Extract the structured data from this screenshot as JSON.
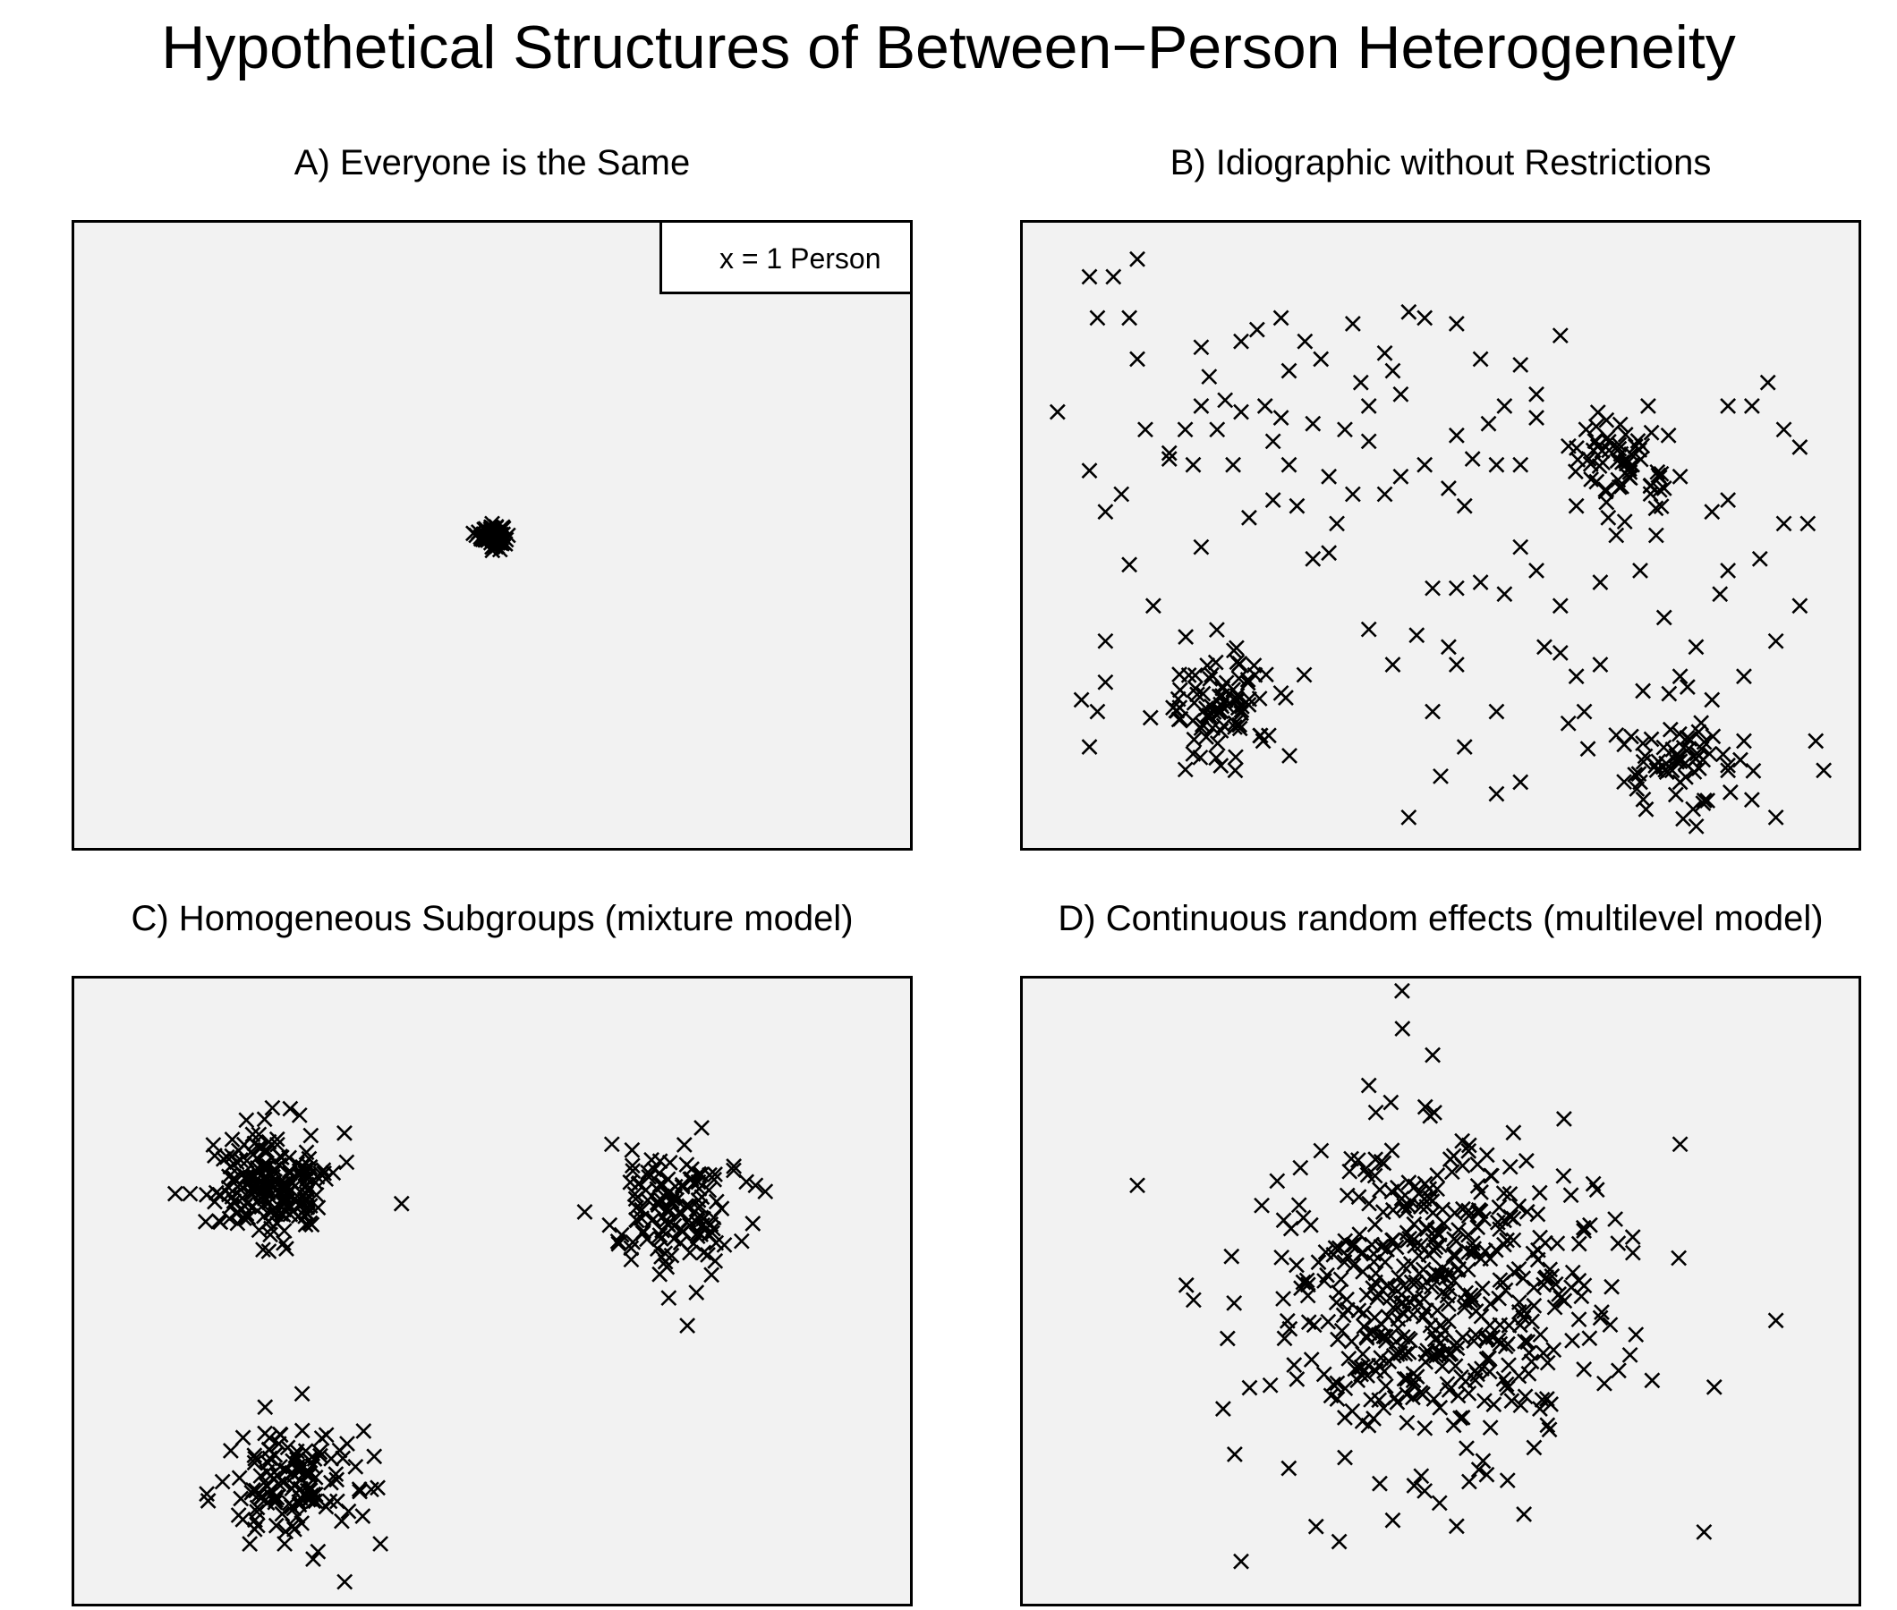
{
  "title": "Hypothetical Structures of Between−Person Heterogeneity",
  "chart_data": [
    {
      "type": "scatter",
      "title": "A) Everyone is the Same",
      "xlabel": "",
      "ylabel": "",
      "xlim": [
        0,
        1
      ],
      "ylim": [
        0,
        1
      ],
      "axes": false,
      "grid": false,
      "legend": {
        "text": "x = 1 Person",
        "placement": "top-right"
      },
      "marker": "x",
      "clusters": [
        {
          "cx": 0.5,
          "cy": 0.5,
          "sd": 0.009,
          "n": 100
        }
      ],
      "series": [
        {
          "points": [
            [
              0.5,
              0.5
            ],
            [
              0.49,
              0.51
            ],
            [
              0.51,
              0.49
            ],
            [
              0.5,
              0.52
            ],
            [
              0.5,
              0.48
            ],
            [
              0.48,
              0.5
            ],
            [
              0.52,
              0.5
            ]
          ]
        }
      ]
    },
    {
      "type": "scatter",
      "title": "B) Idiographic without Restrictions",
      "xlabel": "",
      "ylabel": "",
      "xlim": [
        0,
        1
      ],
      "ylim": [
        0,
        1
      ],
      "axes": false,
      "grid": false,
      "marker": "x",
      "series": [
        {
          "points": [
            [
              0.06,
              0.94
            ],
            [
              0.09,
              0.94
            ],
            [
              0.12,
              0.97
            ],
            [
              0.07,
              0.87
            ],
            [
              0.11,
              0.87
            ],
            [
              0.12,
              0.8
            ],
            [
              0.02,
              0.71
            ],
            [
              0.06,
              0.61
            ],
            [
              0.1,
              0.57
            ],
            [
              0.08,
              0.54
            ],
            [
              0.11,
              0.45
            ],
            [
              0.06,
              0.14
            ],
            [
              0.07,
              0.2
            ],
            [
              0.08,
              0.25
            ],
            [
              0.2,
              0.82
            ],
            [
              0.21,
              0.77
            ],
            [
              0.23,
              0.73
            ],
            [
              0.25,
              0.71
            ],
            [
              0.28,
              0.72
            ],
            [
              0.3,
              0.7
            ],
            [
              0.25,
              0.83
            ],
            [
              0.27,
              0.85
            ],
            [
              0.31,
              0.78
            ],
            [
              0.34,
              0.69
            ],
            [
              0.29,
              0.66
            ],
            [
              0.31,
              0.62
            ],
            [
              0.22,
              0.68
            ],
            [
              0.18,
              0.68
            ],
            [
              0.16,
              0.64
            ],
            [
              0.13,
              0.68
            ],
            [
              0.29,
              0.56
            ],
            [
              0.32,
              0.55
            ],
            [
              0.36,
              0.6
            ],
            [
              0.37,
              0.52
            ],
            [
              0.39,
              0.57
            ],
            [
              0.34,
              0.46
            ],
            [
              0.36,
              0.47
            ],
            [
              0.2,
              0.48
            ],
            [
              0.16,
              0.63
            ],
            [
              0.38,
              0.68
            ],
            [
              0.41,
              0.66
            ],
            [
              0.39,
              0.86
            ],
            [
              0.46,
              0.88
            ],
            [
              0.43,
              0.81
            ],
            [
              0.4,
              0.76
            ],
            [
              0.45,
              0.74
            ],
            [
              0.48,
              0.87
            ],
            [
              0.52,
              0.86
            ],
            [
              0.55,
              0.8
            ],
            [
              0.58,
              0.72
            ],
            [
              0.6,
              0.79
            ],
            [
              0.62,
              0.7
            ],
            [
              0.56,
              0.69
            ],
            [
              0.52,
              0.67
            ],
            [
              0.48,
              0.62
            ],
            [
              0.45,
              0.6
            ],
            [
              0.43,
              0.57
            ],
            [
              0.51,
              0.58
            ],
            [
              0.54,
              0.63
            ],
            [
              0.57,
              0.62
            ],
            [
              0.53,
              0.55
            ],
            [
              0.55,
              0.42
            ],
            [
              0.6,
              0.48
            ],
            [
              0.58,
              0.4
            ],
            [
              0.62,
              0.44
            ],
            [
              0.65,
              0.38
            ],
            [
              0.63,
              0.31
            ],
            [
              0.52,
              0.41
            ],
            [
              0.49,
              0.41
            ],
            [
              0.47,
              0.33
            ],
            [
              0.51,
              0.31
            ],
            [
              0.41,
              0.34
            ],
            [
              0.44,
              0.28
            ],
            [
              0.49,
              0.2
            ],
            [
              0.46,
              0.02
            ],
            [
              0.53,
              0.14
            ],
            [
              0.57,
              0.06
            ],
            [
              0.6,
              0.08
            ],
            [
              0.65,
              0.3
            ],
            [
              0.67,
              0.26
            ],
            [
              0.68,
              0.2
            ],
            [
              0.7,
              0.28
            ],
            [
              0.66,
              0.18
            ],
            [
              0.72,
              0.5
            ],
            [
              0.7,
              0.42
            ],
            [
              0.75,
              0.44
            ],
            [
              0.77,
              0.5
            ],
            [
              0.78,
              0.36
            ],
            [
              0.8,
              0.26
            ],
            [
              0.82,
              0.31
            ],
            [
              0.86,
              0.44
            ],
            [
              0.9,
              0.46
            ],
            [
              0.93,
              0.52
            ],
            [
              0.95,
              0.38
            ],
            [
              0.92,
              0.32
            ],
            [
              0.88,
              0.26
            ],
            [
              0.84,
              0.22
            ],
            [
              0.96,
              0.52
            ],
            [
              0.93,
              0.68
            ],
            [
              0.89,
              0.72
            ],
            [
              0.78,
              0.58
            ],
            [
              0.84,
              0.54
            ],
            [
              0.71,
              0.53
            ],
            [
              0.74,
              0.62
            ],
            [
              0.76,
              0.72
            ],
            [
              0.86,
              0.56
            ],
            [
              0.85,
              0.4
            ],
            [
              0.86,
              0.72
            ],
            [
              0.8,
              0.6
            ],
            [
              0.91,
              0.76
            ],
            [
              0.95,
              0.65
            ],
            [
              0.98,
              0.1
            ],
            [
              0.97,
              0.15
            ],
            [
              0.88,
              0.15
            ],
            [
              0.72,
              0.16
            ],
            [
              0.75,
              0.08
            ],
            [
              0.79,
              0.1
            ],
            [
              0.62,
              0.74
            ],
            [
              0.65,
              0.84
            ],
            [
              0.6,
              0.62
            ],
            [
              0.67,
              0.55
            ],
            [
              0.57,
              0.2
            ],
            [
              0.52,
              0.28
            ],
            [
              0.5,
              0.09
            ],
            [
              0.44,
              0.78
            ],
            [
              0.41,
              0.72
            ],
            [
              0.35,
              0.8
            ],
            [
              0.33,
              0.83
            ],
            [
              0.3,
              0.87
            ],
            [
              0.2,
              0.72
            ],
            [
              0.19,
              0.62
            ],
            [
              0.24,
              0.62
            ],
            [
              0.26,
              0.53
            ],
            [
              0.14,
              0.38
            ],
            [
              0.08,
              0.32
            ],
            [
              0.05,
              0.22
            ],
            [
              0.89,
              0.05
            ],
            [
              0.92,
              0.02
            ],
            [
              0.86,
              0.1
            ],
            [
              0.82,
              0.12
            ],
            [
              0.8,
              0.08
            ]
          ]
        }
      ],
      "clusters": [
        {
          "cx": 0.72,
          "cy": 0.63,
          "sd": 0.04,
          "n": 60
        },
        {
          "cx": 0.23,
          "cy": 0.21,
          "sd": 0.05,
          "n": 90
        },
        {
          "cx": 0.8,
          "cy": 0.12,
          "sd": 0.05,
          "n": 60
        }
      ]
    },
    {
      "type": "scatter",
      "title": "C) Homogeneous Subgroups (mixture model)",
      "xlabel": "",
      "ylabel": "",
      "xlim": [
        0,
        1
      ],
      "ylim": [
        0,
        1
      ],
      "axes": false,
      "grid": false,
      "marker": "x",
      "clusters": [
        {
          "cx": 0.22,
          "cy": 0.68,
          "sd": 0.05,
          "n": 200
        },
        {
          "cx": 0.73,
          "cy": 0.64,
          "sd": 0.05,
          "n": 130
        },
        {
          "cx": 0.25,
          "cy": 0.18,
          "sd": 0.05,
          "n": 130
        }
      ],
      "series": [
        {
          "points": [
            [
              0.36,
              0.07
            ],
            [
              0.24,
              0.07
            ],
            [
              0.65,
              0.75
            ],
            [
              0.83,
              0.68
            ]
          ]
        }
      ]
    },
    {
      "type": "scatter",
      "title": "D) Continuous random effects (multilevel model)",
      "xlabel": "",
      "ylabel": "",
      "xlim": [
        0,
        1
      ],
      "ylim": [
        0,
        1
      ],
      "axes": false,
      "grid": false,
      "marker": "x",
      "clusters": [
        {
          "cx": 0.49,
          "cy": 0.48,
          "sd": 0.14,
          "n": 480
        }
      ],
      "series": [
        {
          "points": [
            [
              0.25,
              0.04
            ],
            [
              0.44,
              0.11
            ],
            [
              0.48,
              0.16
            ],
            [
              0.52,
              0.1
            ],
            [
              0.41,
              0.85
            ],
            [
              0.12,
              0.68
            ],
            [
              0.8,
              0.75
            ],
            [
              0.83,
              0.09
            ],
            [
              0.92,
              0.45
            ]
          ]
        }
      ]
    }
  ]
}
